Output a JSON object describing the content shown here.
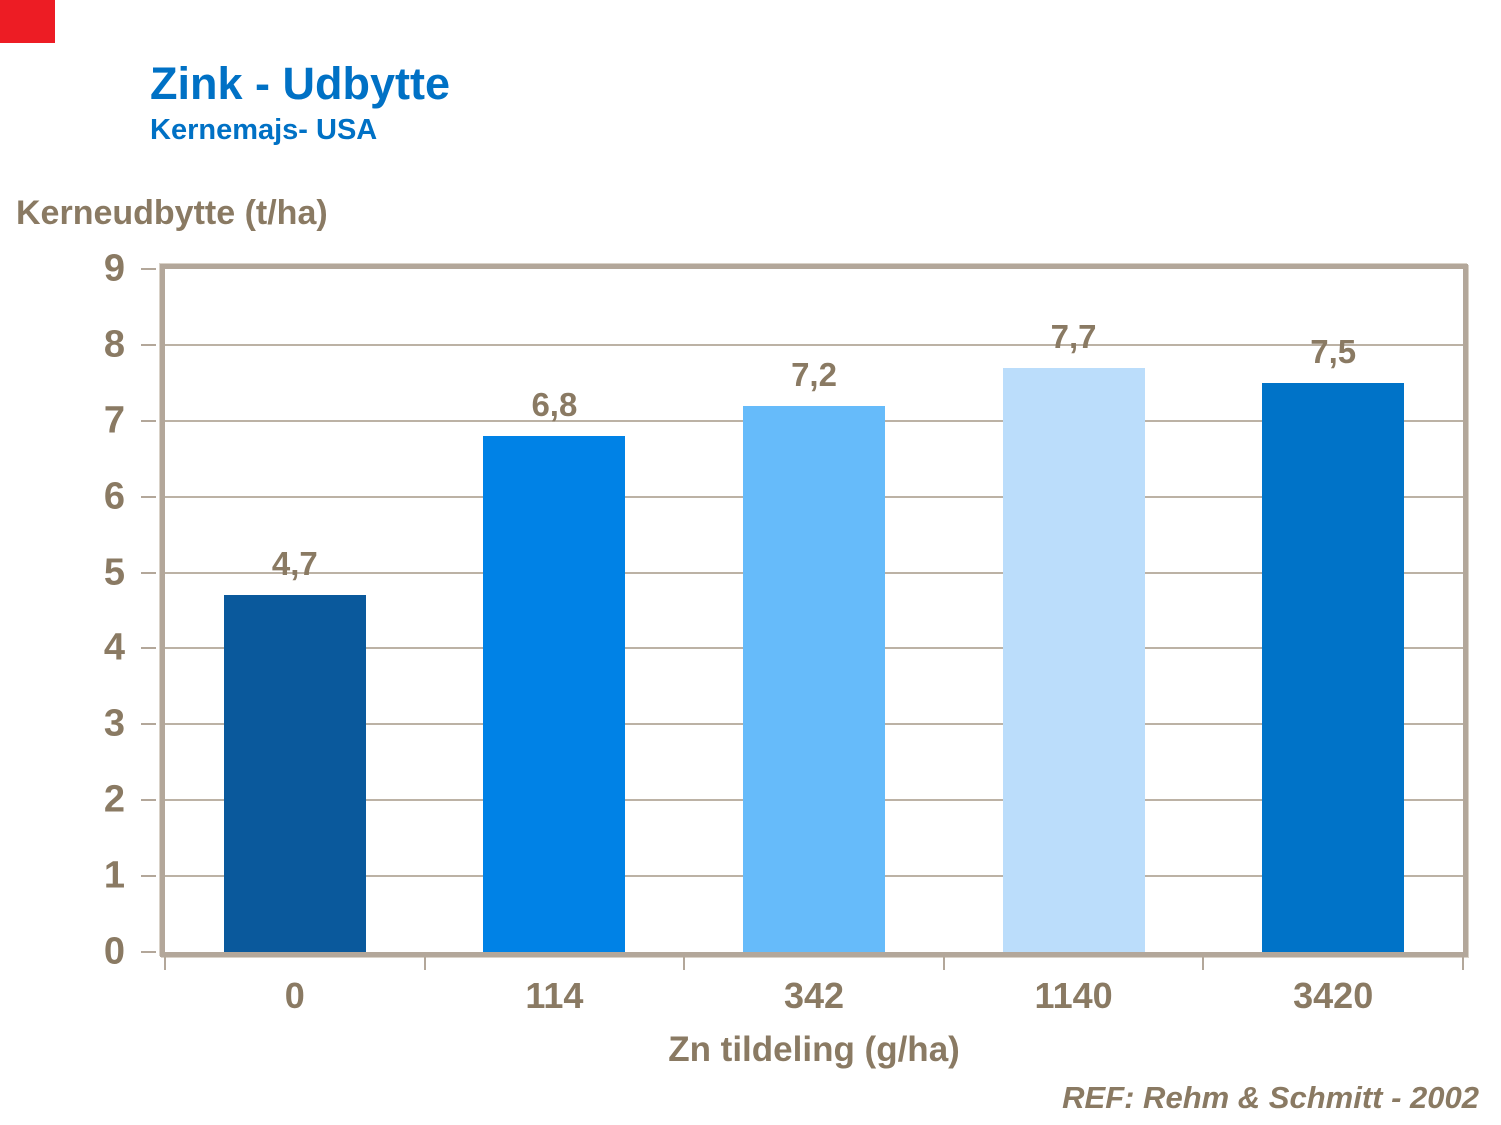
{
  "page": {
    "background_color": "#ffffff",
    "corner_marker_color": "#ed1c24"
  },
  "header": {
    "title": "Zink - Udbytte",
    "subtitle": "Kernemajs- USA",
    "title_color": "#0071c5"
  },
  "chart_data": {
    "type": "bar",
    "title": "Zink - Udbytte",
    "subtitle": "Kernemajs- USA",
    "categories": [
      "0",
      "114",
      "342",
      "1140",
      "3420"
    ],
    "values": [
      4.7,
      6.8,
      7.2,
      7.7,
      7.5
    ],
    "value_labels": [
      "4,7",
      "6,8",
      "7,2",
      "7,7",
      "7,5"
    ],
    "bar_colors": [
      "#0a599c",
      "#0082e6",
      "#66bbfa",
      "#bbddfb",
      "#0073c8"
    ],
    "xlabel": "Zn tildeling (g/ha)",
    "ylabel": "Kerneudbytte (t/ha)",
    "ylim": [
      0,
      9
    ],
    "ytick_step": 1,
    "grid": "horizontal",
    "legend_position": "none",
    "frame_color": "#b3a79a",
    "gridline_color": "#bcb2a5",
    "text_color": "#8a7a63"
  },
  "footer": {
    "ref": "REF: Rehm & Schmitt - 2002"
  }
}
